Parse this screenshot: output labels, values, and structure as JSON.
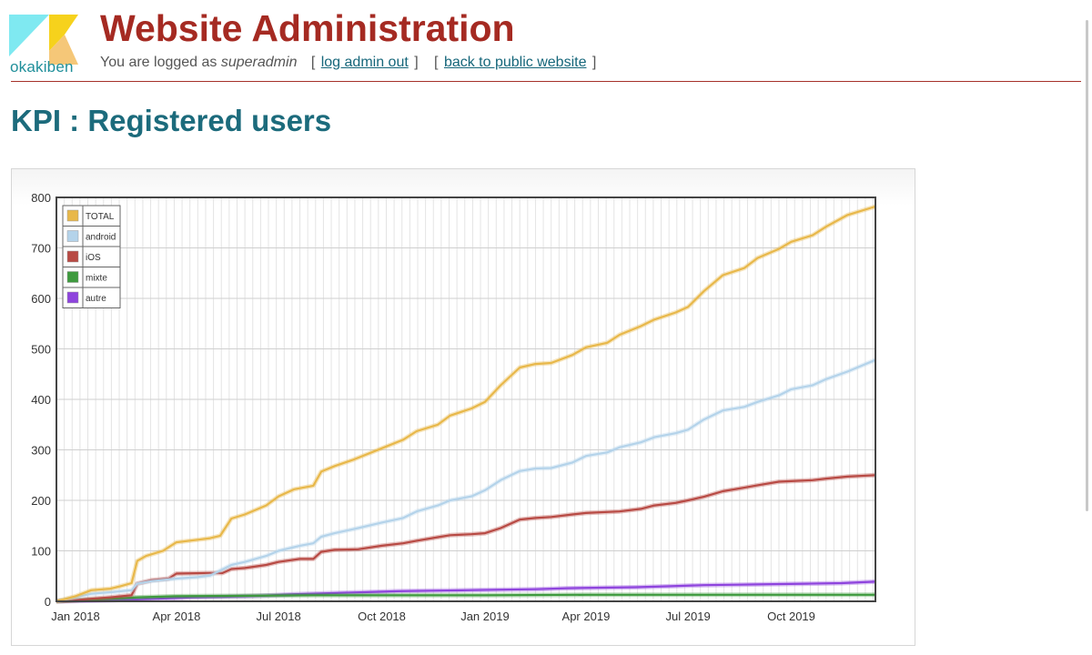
{
  "header": {
    "logo_text": "okakiben",
    "title": "Website Administration",
    "login_prefix": "You are logged as ",
    "username": "superadmin",
    "logout_link": "log admin out",
    "public_link": "back to public website"
  },
  "page_title": "KPI : Registered users",
  "colors": {
    "title": "#a52a22",
    "heading": "#1c6b7c",
    "link": "#15667a",
    "logo_cyan": "#7fe9f1",
    "logo_yellow": "#f6d21c",
    "logo_peach": "#f5c778"
  },
  "chart_data": {
    "type": "line",
    "x_type": "date",
    "x_range": [
      "2017-12-15",
      "2019-12-15"
    ],
    "ylim": [
      0,
      800
    ],
    "y_ticks": [
      0,
      100,
      200,
      300,
      400,
      500,
      600,
      700,
      800
    ],
    "x_ticks": [
      "Jan 2018",
      "Apr 2018",
      "Jul 2018",
      "Oct 2018",
      "Jan 2019",
      "Apr 2019",
      "Jul 2019",
      "Oct 2019"
    ],
    "x_tick_dates": [
      "2018-01-01",
      "2018-04-01",
      "2018-07-01",
      "2018-10-01",
      "2019-01-01",
      "2019-04-01",
      "2019-07-01",
      "2019-10-01"
    ],
    "grid": true,
    "legend_position": "top-left",
    "series": [
      {
        "name": "TOTAL",
        "color": "#e8b84a",
        "points": [
          [
            "2017-12-15",
            0
          ],
          [
            "2018-01-01",
            10
          ],
          [
            "2018-01-15",
            22
          ],
          [
            "2018-02-01",
            25
          ],
          [
            "2018-02-10",
            30
          ],
          [
            "2018-02-20",
            36
          ],
          [
            "2018-02-25",
            80
          ],
          [
            "2018-03-05",
            90
          ],
          [
            "2018-03-20",
            100
          ],
          [
            "2018-04-01",
            117
          ],
          [
            "2018-04-20",
            122
          ],
          [
            "2018-05-01",
            125
          ],
          [
            "2018-05-10",
            130
          ],
          [
            "2018-05-20",
            164
          ],
          [
            "2018-06-01",
            172
          ],
          [
            "2018-06-20",
            190
          ],
          [
            "2018-07-01",
            208
          ],
          [
            "2018-07-15",
            222
          ],
          [
            "2018-08-01",
            229
          ],
          [
            "2018-08-08",
            257
          ],
          [
            "2018-08-20",
            268
          ],
          [
            "2018-09-05",
            280
          ],
          [
            "2018-10-01",
            303
          ],
          [
            "2018-10-20",
            320
          ],
          [
            "2018-11-01",
            337
          ],
          [
            "2018-11-20",
            350
          ],
          [
            "2018-12-01",
            368
          ],
          [
            "2018-12-20",
            382
          ],
          [
            "2019-01-01",
            395
          ],
          [
            "2019-01-15",
            428
          ],
          [
            "2019-02-01",
            463
          ],
          [
            "2019-02-15",
            470
          ],
          [
            "2019-03-01",
            472
          ],
          [
            "2019-03-20",
            488
          ],
          [
            "2019-04-01",
            503
          ],
          [
            "2019-04-20",
            512
          ],
          [
            "2019-05-01",
            528
          ],
          [
            "2019-05-20",
            545
          ],
          [
            "2019-06-01",
            558
          ],
          [
            "2019-06-20",
            572
          ],
          [
            "2019-07-01",
            583
          ],
          [
            "2019-07-15",
            614
          ],
          [
            "2019-08-01",
            646
          ],
          [
            "2019-08-20",
            660
          ],
          [
            "2019-09-01",
            680
          ],
          [
            "2019-09-20",
            698
          ],
          [
            "2019-10-01",
            712
          ],
          [
            "2019-10-20",
            725
          ],
          [
            "2019-11-01",
            742
          ],
          [
            "2019-11-20",
            765
          ],
          [
            "2019-12-15",
            782
          ]
        ]
      },
      {
        "name": "android",
        "color": "#b4d3ea",
        "points": [
          [
            "2017-12-15",
            0
          ],
          [
            "2018-01-01",
            8
          ],
          [
            "2018-01-15",
            15
          ],
          [
            "2018-02-01",
            18
          ],
          [
            "2018-02-20",
            22
          ],
          [
            "2018-02-25",
            35
          ],
          [
            "2018-03-10",
            40
          ],
          [
            "2018-04-01",
            45
          ],
          [
            "2018-04-20",
            48
          ],
          [
            "2018-05-01",
            51
          ],
          [
            "2018-05-20",
            72
          ],
          [
            "2018-06-01",
            78
          ],
          [
            "2018-06-20",
            90
          ],
          [
            "2018-07-01",
            100
          ],
          [
            "2018-07-20",
            110
          ],
          [
            "2018-08-01",
            115
          ],
          [
            "2018-08-08",
            128
          ],
          [
            "2018-08-20",
            135
          ],
          [
            "2018-09-10",
            145
          ],
          [
            "2018-10-01",
            156
          ],
          [
            "2018-10-20",
            165
          ],
          [
            "2018-11-01",
            178
          ],
          [
            "2018-11-20",
            190
          ],
          [
            "2018-12-01",
            200
          ],
          [
            "2018-12-20",
            208
          ],
          [
            "2019-01-01",
            220
          ],
          [
            "2019-01-15",
            240
          ],
          [
            "2019-02-01",
            258
          ],
          [
            "2019-02-15",
            263
          ],
          [
            "2019-03-01",
            264
          ],
          [
            "2019-03-20",
            275
          ],
          [
            "2019-04-01",
            288
          ],
          [
            "2019-04-20",
            295
          ],
          [
            "2019-05-01",
            305
          ],
          [
            "2019-05-20",
            315
          ],
          [
            "2019-06-01",
            325
          ],
          [
            "2019-06-20",
            333
          ],
          [
            "2019-07-01",
            340
          ],
          [
            "2019-07-15",
            360
          ],
          [
            "2019-08-01",
            378
          ],
          [
            "2019-08-20",
            385
          ],
          [
            "2019-09-01",
            395
          ],
          [
            "2019-09-20",
            408
          ],
          [
            "2019-10-01",
            420
          ],
          [
            "2019-10-20",
            428
          ],
          [
            "2019-11-01",
            440
          ],
          [
            "2019-11-20",
            455
          ],
          [
            "2019-12-15",
            478
          ]
        ]
      },
      {
        "name": "iOS",
        "color": "#b84a44",
        "points": [
          [
            "2017-12-15",
            0
          ],
          [
            "2018-01-01",
            2
          ],
          [
            "2018-01-15",
            5
          ],
          [
            "2018-02-01",
            8
          ],
          [
            "2018-02-20",
            12
          ],
          [
            "2018-02-25",
            35
          ],
          [
            "2018-03-10",
            42
          ],
          [
            "2018-03-25",
            45
          ],
          [
            "2018-04-01",
            55
          ],
          [
            "2018-05-01",
            56
          ],
          [
            "2018-05-12",
            56
          ],
          [
            "2018-05-20",
            64
          ],
          [
            "2018-06-01",
            66
          ],
          [
            "2018-06-20",
            72
          ],
          [
            "2018-07-01",
            78
          ],
          [
            "2018-07-20",
            84
          ],
          [
            "2018-08-01",
            84
          ],
          [
            "2018-08-08",
            98
          ],
          [
            "2018-08-20",
            102
          ],
          [
            "2018-09-10",
            103
          ],
          [
            "2018-10-01",
            110
          ],
          [
            "2018-10-20",
            115
          ],
          [
            "2018-11-01",
            120
          ],
          [
            "2018-11-20",
            127
          ],
          [
            "2018-12-01",
            131
          ],
          [
            "2018-12-20",
            133
          ],
          [
            "2019-01-01",
            135
          ],
          [
            "2019-01-15",
            145
          ],
          [
            "2019-02-01",
            162
          ],
          [
            "2019-02-15",
            165
          ],
          [
            "2019-03-01",
            167
          ],
          [
            "2019-03-20",
            172
          ],
          [
            "2019-04-01",
            175
          ],
          [
            "2019-05-01",
            178
          ],
          [
            "2019-05-20",
            183
          ],
          [
            "2019-06-01",
            190
          ],
          [
            "2019-06-20",
            195
          ],
          [
            "2019-07-01",
            200
          ],
          [
            "2019-07-15",
            207
          ],
          [
            "2019-08-01",
            218
          ],
          [
            "2019-08-20",
            225
          ],
          [
            "2019-09-01",
            230
          ],
          [
            "2019-09-20",
            237
          ],
          [
            "2019-10-01",
            238
          ],
          [
            "2019-10-20",
            240
          ],
          [
            "2019-11-01",
            243
          ],
          [
            "2019-11-20",
            247
          ],
          [
            "2019-12-15",
            250
          ]
        ]
      },
      {
        "name": "mixte",
        "color": "#3e9a3e",
        "points": [
          [
            "2017-12-15",
            0
          ],
          [
            "2018-01-15",
            3
          ],
          [
            "2018-02-01",
            5
          ],
          [
            "2018-02-25",
            8
          ],
          [
            "2018-04-01",
            10
          ],
          [
            "2018-06-01",
            11
          ],
          [
            "2018-08-01",
            12
          ],
          [
            "2018-10-01",
            12
          ],
          [
            "2019-01-01",
            12
          ],
          [
            "2019-04-01",
            13
          ],
          [
            "2019-07-01",
            13
          ],
          [
            "2019-10-01",
            13
          ],
          [
            "2019-12-15",
            13
          ]
        ]
      },
      {
        "name": "autre",
        "color": "#8e44dd",
        "points": [
          [
            "2017-12-15",
            0
          ],
          [
            "2018-01-15",
            1
          ],
          [
            "2018-02-15",
            3
          ],
          [
            "2018-03-15",
            5
          ],
          [
            "2018-04-15",
            8
          ],
          [
            "2018-05-15",
            9
          ],
          [
            "2018-06-15",
            11
          ],
          [
            "2018-07-15",
            14
          ],
          [
            "2018-08-15",
            16
          ],
          [
            "2018-09-15",
            18
          ],
          [
            "2018-10-15",
            20
          ],
          [
            "2018-11-15",
            21
          ],
          [
            "2018-12-15",
            22
          ],
          [
            "2019-01-15",
            23
          ],
          [
            "2019-02-15",
            24
          ],
          [
            "2019-03-15",
            26
          ],
          [
            "2019-04-15",
            27
          ],
          [
            "2019-05-15",
            28
          ],
          [
            "2019-06-15",
            30
          ],
          [
            "2019-07-15",
            32
          ],
          [
            "2019-08-15",
            33
          ],
          [
            "2019-09-15",
            34
          ],
          [
            "2019-10-15",
            35
          ],
          [
            "2019-11-15",
            36
          ],
          [
            "2019-12-15",
            39
          ]
        ]
      }
    ]
  }
}
